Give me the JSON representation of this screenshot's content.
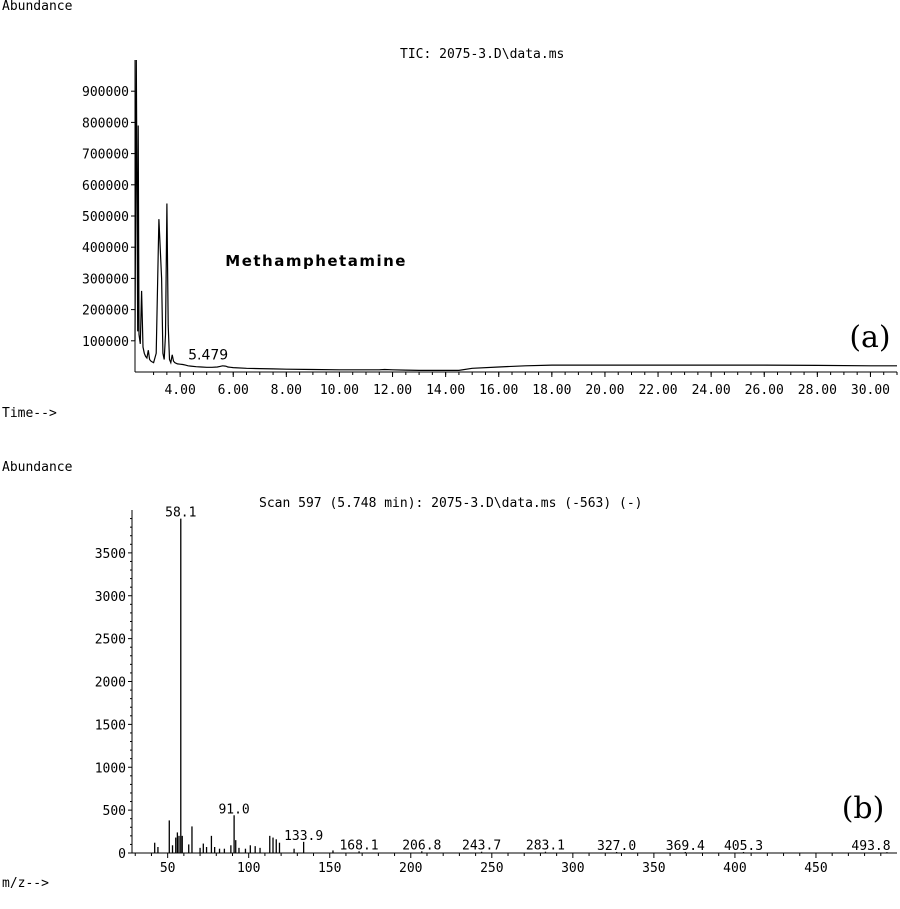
{
  "chart_data": [
    {
      "type": "line",
      "panel_label": "(a)",
      "title": "TIC: 2075-3.D\\data.ms",
      "ylabel": "Abundance",
      "xlabel": "Time-->",
      "ylim": [
        0,
        1000000
      ],
      "xlim": [
        2.3,
        31.0
      ],
      "y_ticks": [
        100000,
        200000,
        300000,
        400000,
        500000,
        600000,
        700000,
        800000,
        900000
      ],
      "y_tick_labels": [
        "100000",
        "200000",
        "300000",
        "400000",
        "500000",
        "600000",
        "700000",
        "800000",
        "900000"
      ],
      "x_ticks": [
        4,
        6,
        8,
        10,
        12,
        14,
        16,
        18,
        20,
        22,
        24,
        26,
        28,
        30
      ],
      "x_tick_labels": [
        "4.00",
        "6.00",
        "8.00",
        "10.00",
        "12.00",
        "14.00",
        "16.00",
        "18.00",
        "20.00",
        "22.00",
        "24.00",
        "26.00",
        "28.00",
        "30.00"
      ],
      "annotations": [
        {
          "text": "Methamphetamine",
          "x": 5.7,
          "y": 340000
        },
        {
          "text": "5.479",
          "x": 4.3,
          "y": 40000
        }
      ],
      "series": [
        {
          "x": [
            2.3,
            2.35,
            2.4,
            2.42,
            2.45,
            2.5,
            2.55,
            2.6,
            2.65,
            2.7,
            2.75,
            2.8,
            2.85,
            2.9,
            2.95,
            3.0,
            3.1,
            3.2,
            3.3,
            3.35,
            3.4,
            3.45,
            3.5,
            3.55,
            3.6,
            3.65,
            3.7,
            3.75,
            3.8,
            3.85,
            3.9,
            4.0,
            4.1,
            4.2,
            4.3,
            4.4,
            4.6,
            4.8,
            5.0,
            5.2,
            5.4,
            5.5,
            5.6,
            5.7,
            5.75,
            5.8,
            5.9,
            6.0,
            6.5,
            7.0,
            7.5,
            8.0,
            9.0,
            10.0,
            11.0,
            11.5,
            11.7,
            12.0,
            12.5,
            13.0,
            14.0,
            14.5,
            15.0,
            16.0,
            17.0,
            18.0,
            19.0,
            20.0,
            22.0,
            24.0,
            26.0,
            28.0,
            30.0,
            31.0
          ],
          "y": [
            100000,
            1000000,
            130000,
            790000,
            120000,
            90000,
            260000,
            80000,
            60000,
            50000,
            45000,
            70000,
            40000,
            35000,
            32000,
            30000,
            60000,
            490000,
            300000,
            60000,
            40000,
            120000,
            540000,
            150000,
            40000,
            30000,
            55000,
            35000,
            30000,
            28000,
            26000,
            25000,
            24000,
            22000,
            20000,
            19000,
            17000,
            16000,
            15000,
            15000,
            16000,
            18000,
            20000,
            19000,
            18000,
            16000,
            15000,
            14000,
            12000,
            11000,
            10000,
            9000,
            8000,
            7000,
            7000,
            7000,
            8000,
            7000,
            6000,
            5000,
            5000,
            5000,
            12000,
            16000,
            20000,
            22000,
            22000,
            22000,
            22000,
            22000,
            22000,
            21000,
            20000,
            20000
          ]
        }
      ]
    },
    {
      "type": "bar",
      "panel_label": "(b)",
      "title": "Scan 597 (5.748 min): 2075-3.D\\data.ms (-563) (-)",
      "ylabel": "Abundance",
      "xlabel": "m/z-->",
      "ylim": [
        0,
        4000
      ],
      "xlim": [
        28,
        500
      ],
      "y_ticks": [
        0,
        500,
        1000,
        1500,
        2000,
        2500,
        3000,
        3500
      ],
      "y_tick_labels": [
        "0",
        "500",
        "1000",
        "1500",
        "2000",
        "2500",
        "3000",
        "3500"
      ],
      "x_ticks": [
        50,
        100,
        150,
        200,
        250,
        300,
        350,
        400,
        450
      ],
      "x_tick_labels": [
        "50",
        "100",
        "150",
        "200",
        "250",
        "300",
        "350",
        "400",
        "450"
      ],
      "peaks": {
        "x": [
          42,
          44,
          51,
          53,
          55,
          56,
          57,
          58.1,
          59,
          63,
          65,
          70,
          72,
          74,
          77,
          79,
          82,
          85,
          89,
          91.0,
          92,
          94,
          98,
          101,
          104,
          107,
          113,
          115,
          117,
          119,
          128,
          133.9,
          152,
          168.1,
          206.8,
          243.7,
          283.1,
          327.0,
          369.4,
          405.3,
          493.8
        ],
        "y": [
          120,
          70,
          380,
          90,
          180,
          240,
          200,
          3900,
          200,
          100,
          310,
          60,
          110,
          70,
          200,
          70,
          50,
          50,
          90,
          440,
          150,
          60,
          50,
          90,
          80,
          60,
          200,
          180,
          160,
          120,
          50,
          130,
          30,
          20,
          20,
          15,
          15,
          12,
          12,
          12,
          10
        ]
      },
      "peak_labels": [
        "58.1",
        "91.0",
        "133.9",
        "168.1",
        "206.8",
        "243.7",
        "283.1",
        "327.0",
        "369.4",
        "405.3",
        "493.8"
      ]
    }
  ]
}
